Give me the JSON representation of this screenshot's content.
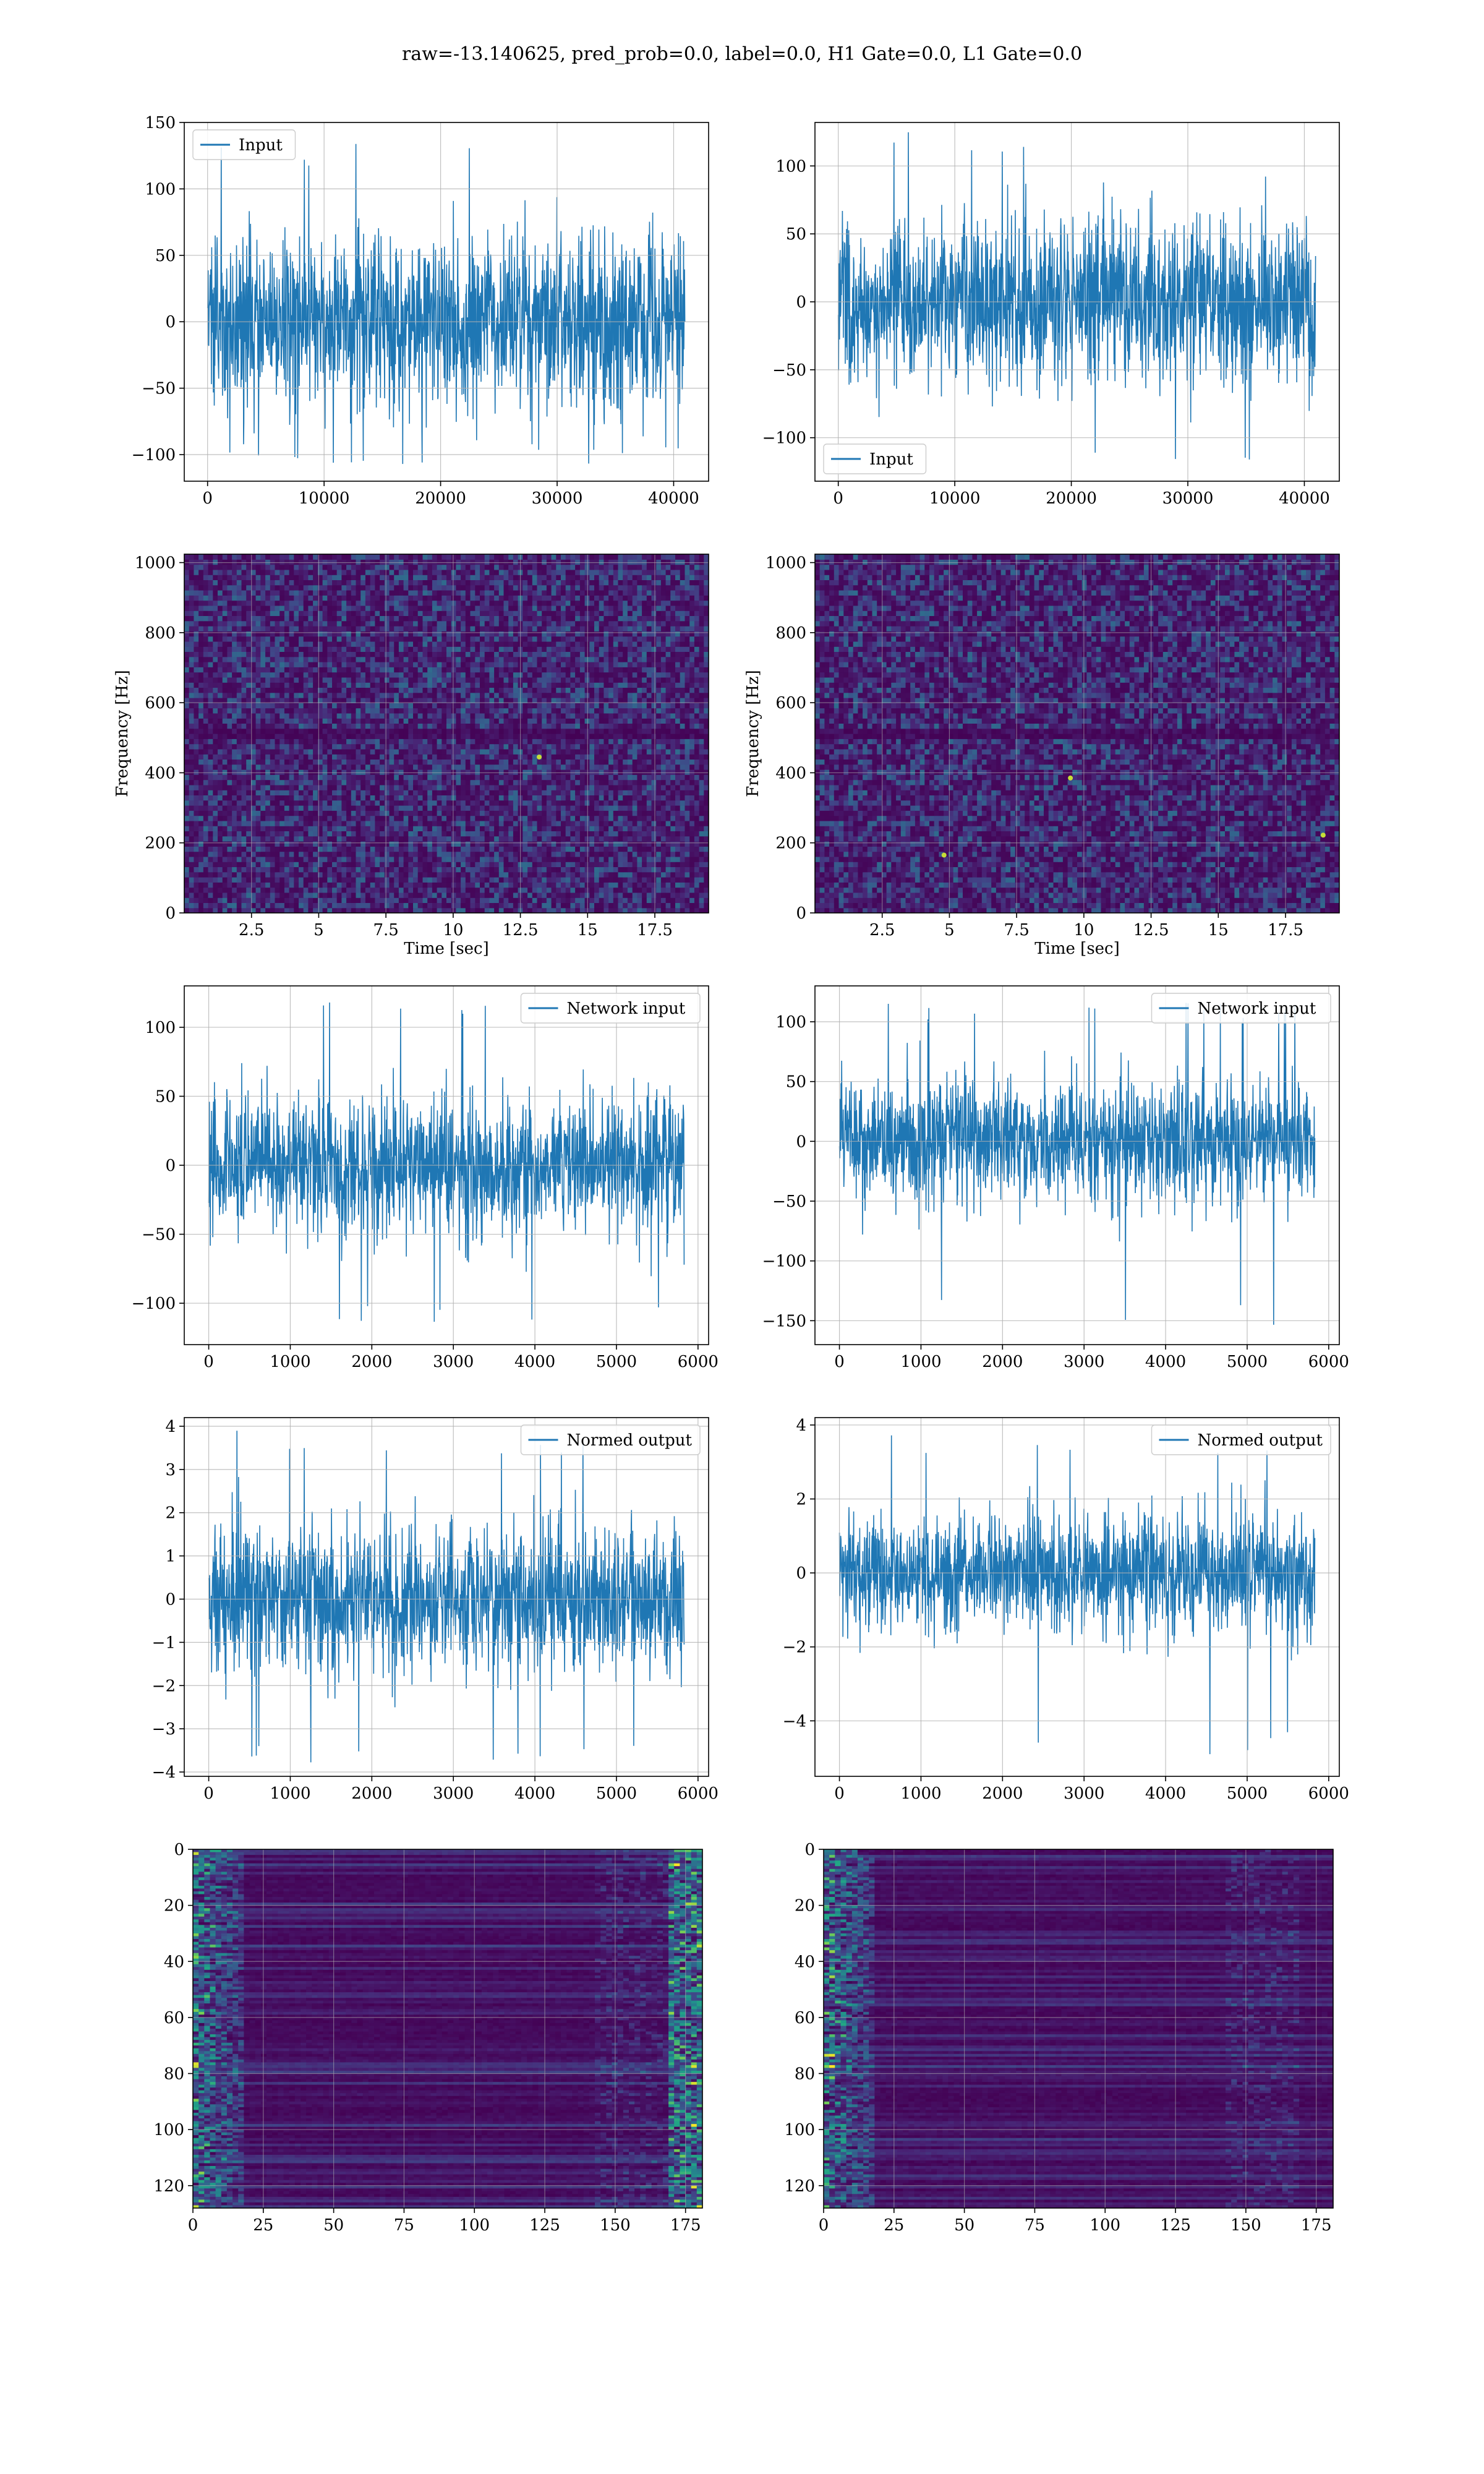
{
  "figure": {
    "suptitle": "raw=-13.140625, pred_prob=0.0, label=0.0, H1 Gate=0.0, L1 Gate=0.0",
    "line_color": "#1f77b4",
    "grid_color": "#b0b0b0",
    "colormap": "viridis"
  },
  "chart_data": [
    {
      "type": "line",
      "panel": "row1-left",
      "xlim": [
        -2000,
        43000
      ],
      "ylim": [
        -120,
        150
      ],
      "xticks": [
        0,
        10000,
        20000,
        30000,
        40000
      ],
      "yticks": [
        -100,
        -50,
        0,
        50,
        100,
        150
      ],
      "x_range": [
        0,
        40960
      ],
      "amplitude_core": [
        -65,
        65
      ],
      "amplitude_peaks": [
        -115,
        138
      ],
      "grid": true,
      "legend": {
        "location": "upper left",
        "entries": [
          "Input"
        ]
      },
      "xlabel": "",
      "ylabel": ""
    },
    {
      "type": "line",
      "panel": "row1-right",
      "xlim": [
        -2000,
        43000
      ],
      "ylim": [
        -132,
        132
      ],
      "xticks": [
        0,
        10000,
        20000,
        30000,
        40000
      ],
      "yticks": [
        -100,
        -50,
        0,
        50,
        100
      ],
      "x_range": [
        0,
        40960
      ],
      "amplitude_core": [
        -60,
        60
      ],
      "amplitude_peaks": [
        -120,
        125
      ],
      "grid": true,
      "legend": {
        "location": "lower left",
        "entries": [
          "Input"
        ]
      },
      "xlabel": "",
      "ylabel": ""
    },
    {
      "type": "heatmap",
      "panel": "row2-left",
      "xlim": [
        0,
        19.5
      ],
      "ylim": [
        0,
        1024
      ],
      "xticks": [
        2.5,
        5.0,
        7.5,
        10.0,
        12.5,
        15.0,
        17.5
      ],
      "yticks": [
        0,
        200,
        400,
        600,
        800,
        1000
      ],
      "xlabel": "Time [sec]",
      "ylabel": "Frequency [Hz]",
      "colormap": "viridis",
      "dark_band_hz": 512,
      "hot_spots": [
        [
          13.2,
          445
        ]
      ],
      "grid": true
    },
    {
      "type": "heatmap",
      "panel": "row2-right",
      "xlim": [
        0,
        19.5
      ],
      "ylim": [
        0,
        1024
      ],
      "xticks": [
        2.5,
        5.0,
        7.5,
        10.0,
        12.5,
        15.0,
        17.5
      ],
      "yticks": [
        0,
        200,
        400,
        600,
        800,
        1000
      ],
      "xlabel": "Time [sec]",
      "ylabel": "Frequency [Hz]",
      "colormap": "viridis",
      "dark_band_hz": 512,
      "hot_spots": [
        [
          18.9,
          222
        ],
        [
          4.8,
          165
        ],
        [
          9.5,
          385
        ]
      ],
      "grid": true
    },
    {
      "type": "line",
      "panel": "row3-left",
      "xlim": [
        -300,
        6130
      ],
      "ylim": [
        -130,
        130
      ],
      "xticks": [
        0,
        1000,
        2000,
        3000,
        4000,
        5000,
        6000
      ],
      "yticks": [
        -100,
        -50,
        0,
        50,
        100
      ],
      "x_range": [
        0,
        5830
      ],
      "amplitude_core": [
        -50,
        50
      ],
      "amplitude_peaks": [
        -118,
        122
      ],
      "grid": true,
      "legend": {
        "location": "upper right",
        "entries": [
          "Network input"
        ]
      },
      "xlabel": "",
      "ylabel": ""
    },
    {
      "type": "line",
      "panel": "row3-right",
      "xlim": [
        -300,
        6130
      ],
      "ylim": [
        -170,
        130
      ],
      "xticks": [
        0,
        1000,
        2000,
        3000,
        4000,
        5000,
        6000
      ],
      "yticks": [
        -150,
        -100,
        -50,
        0,
        50,
        100
      ],
      "x_range": [
        0,
        5830
      ],
      "amplitude_core": [
        -50,
        50
      ],
      "amplitude_peaks": [
        -155,
        117
      ],
      "grid": true,
      "legend": {
        "location": "upper right",
        "entries": [
          "Network input"
        ]
      },
      "xlabel": "",
      "ylabel": ""
    },
    {
      "type": "line",
      "panel": "row4-left",
      "xlim": [
        -300,
        6130
      ],
      "ylim": [
        -4.1,
        4.2
      ],
      "xticks": [
        0,
        1000,
        2000,
        3000,
        4000,
        5000,
        6000
      ],
      "yticks": [
        -4,
        -3,
        -2,
        -1,
        0,
        1,
        2,
        3,
        4
      ],
      "x_range": [
        0,
        5830
      ],
      "amplitude_core": [
        -1.6,
        1.6
      ],
      "amplitude_peaks": [
        -3.8,
        3.95
      ],
      "grid": true,
      "legend": {
        "location": "upper right",
        "entries": [
          "Normed output"
        ]
      },
      "xlabel": "",
      "ylabel": ""
    },
    {
      "type": "line",
      "panel": "row4-right",
      "xlim": [
        -300,
        6130
      ],
      "ylim": [
        -5.5,
        4.2
      ],
      "xticks": [
        0,
        1000,
        2000,
        3000,
        4000,
        5000,
        6000
      ],
      "yticks": [
        -4,
        -2,
        0,
        2,
        4
      ],
      "x_range": [
        0,
        5830
      ],
      "amplitude_core": [
        -1.6,
        1.6
      ],
      "amplitude_peaks": [
        -5.0,
        3.8
      ],
      "grid": true,
      "legend": {
        "location": "upper right",
        "entries": [
          "Normed output"
        ]
      },
      "xlabel": "",
      "ylabel": ""
    },
    {
      "type": "heatmap",
      "panel": "row5-left",
      "xlim": [
        0,
        181
      ],
      "ylim": [
        0,
        128
      ],
      "y_inverted": true,
      "xticks": [
        0,
        25,
        50,
        75,
        100,
        125,
        150,
        175
      ],
      "yticks": [
        0,
        20,
        40,
        60,
        80,
        100,
        120
      ],
      "colormap": "viridis",
      "bright_edges": [
        "left",
        "right"
      ],
      "grid": true,
      "xlabel": "",
      "ylabel": ""
    },
    {
      "type": "heatmap",
      "panel": "row5-right",
      "xlim": [
        0,
        181
      ],
      "ylim": [
        0,
        128
      ],
      "y_inverted": true,
      "xticks": [
        0,
        25,
        50,
        75,
        100,
        125,
        150,
        175
      ],
      "yticks": [
        0,
        20,
        40,
        60,
        80,
        100,
        120
      ],
      "colormap": "viridis",
      "bright_edges": [
        "left"
      ],
      "grid": true,
      "xlabel": "",
      "ylabel": ""
    }
  ]
}
